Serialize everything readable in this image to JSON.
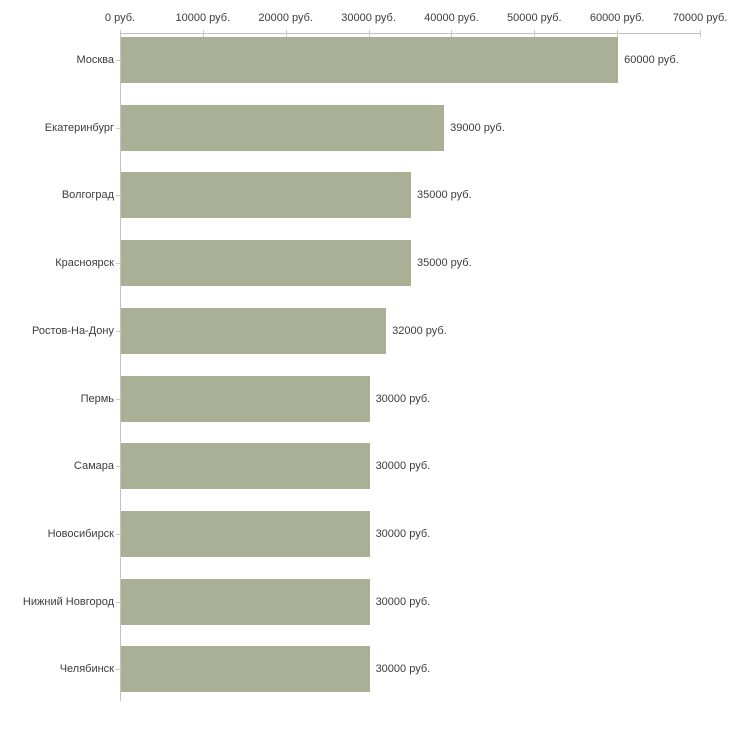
{
  "chart_data": {
    "type": "bar",
    "orientation": "horizontal",
    "title": "",
    "xlabel": "",
    "ylabel": "",
    "grid": false,
    "legend": false,
    "categories": [
      "Москва",
      "Екатеринбург",
      "Волгоград",
      "Красноярск",
      "Ростов-На-Дону",
      "Пермь",
      "Самара",
      "Новосибирск",
      "Нижний Новгород",
      "Челябинск"
    ],
    "values": [
      60000,
      39000,
      35000,
      35000,
      32000,
      30000,
      30000,
      30000,
      30000,
      30000
    ],
    "bar_value_labels": [
      "60000 руб.",
      "39000 руб.",
      "35000 руб.",
      "35000 руб.",
      "32000 руб.",
      "30000 руб.",
      "30000 руб.",
      "30000 руб.",
      "30000 руб.",
      "30000 руб."
    ],
    "x_ticks": [
      0,
      10000,
      20000,
      30000,
      40000,
      50000,
      60000,
      70000
    ],
    "x_tick_labels": [
      "0 руб.",
      "10000 руб.",
      "20000 руб.",
      "30000 руб.",
      "40000 руб.",
      "50000 руб.",
      "60000 руб.",
      "70000 руб."
    ],
    "xlim": [
      0,
      70000
    ],
    "colors": {
      "bar": "#aab096",
      "axis": "#c3c3c3",
      "tick": "#d0d0a8",
      "text": "#3c3c3c",
      "background": "#ffffff"
    }
  }
}
